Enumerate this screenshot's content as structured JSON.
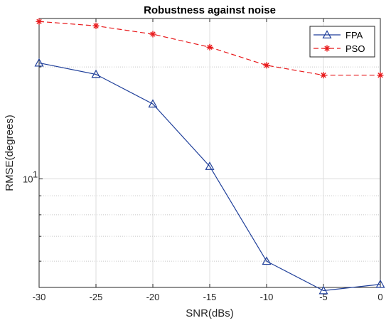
{
  "chart_data": {
    "type": "line",
    "title": "Robustness against noise",
    "xlabel": "SNR(dBs)",
    "ylabel": "RMSE(degrees)",
    "xlim": [
      -30,
      0
    ],
    "ylim": [
      5.1,
      27
    ],
    "yscale": "log",
    "grid": true,
    "legend_position": "top-right",
    "x_ticks": [
      "-30",
      "-25",
      "-20",
      "-15",
      "-10",
      "-5",
      "0"
    ],
    "x_tick_values": [
      -30,
      -25,
      -20,
      -15,
      -10,
      -5,
      0
    ],
    "y_major_tick": {
      "base": "10",
      "exponent": "1"
    },
    "x": [
      -30,
      -25,
      -20,
      -15,
      -10,
      -5,
      0
    ],
    "series": [
      {
        "name": "FPA",
        "values": [
          20.5,
          19.1,
          15.9,
          10.8,
          6.0,
          5.0,
          5.2
        ],
        "color": "#1f3f9a",
        "line": "solid",
        "marker": "triangle"
      },
      {
        "name": "PSO",
        "values": [
          26.5,
          25.8,
          24.5,
          22.6,
          20.2,
          19.0,
          19.0
        ],
        "color": "#e8191b",
        "line": "dashed",
        "marker": "asterisk"
      }
    ]
  }
}
